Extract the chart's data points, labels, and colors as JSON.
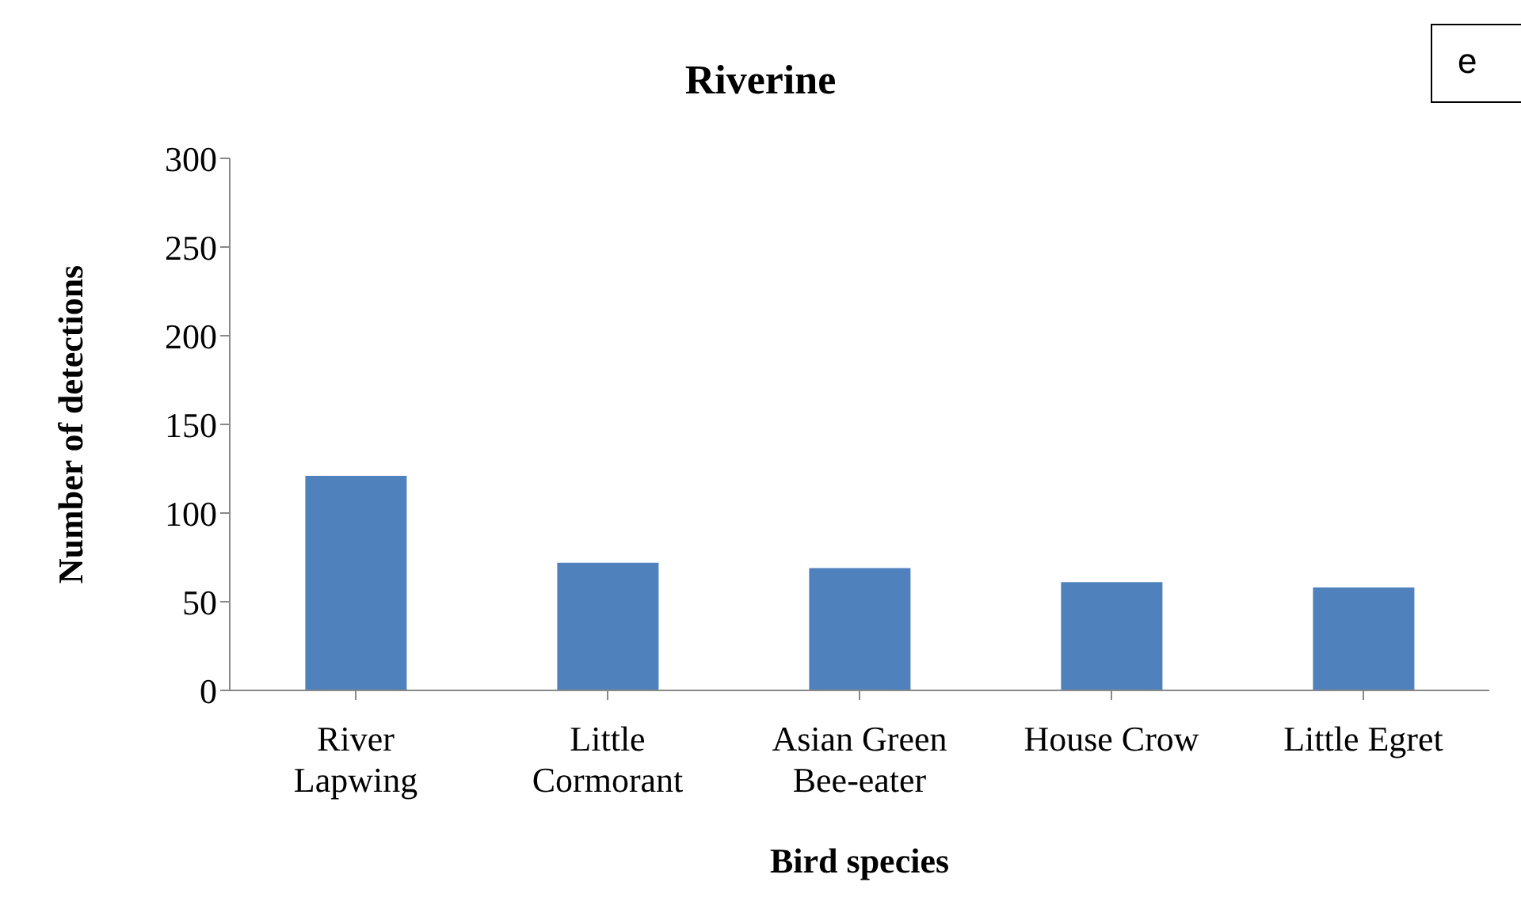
{
  "chart_data": {
    "type": "bar",
    "title": "Riverine",
    "xlabel": "Bird species",
    "ylabel": "Number of detections",
    "categories": [
      "River Lapwing",
      "Little Cormorant",
      "Asian Green Bee-eater",
      "House Crow",
      "Little Egret"
    ],
    "values": [
      121,
      72,
      69,
      61,
      58
    ],
    "color": "#4f81bd",
    "ylim": [
      0,
      300
    ],
    "yticks": [
      0,
      50,
      100,
      150,
      200,
      250,
      300
    ],
    "grid": false,
    "legend": false,
    "annotations": [
      "e"
    ]
  }
}
